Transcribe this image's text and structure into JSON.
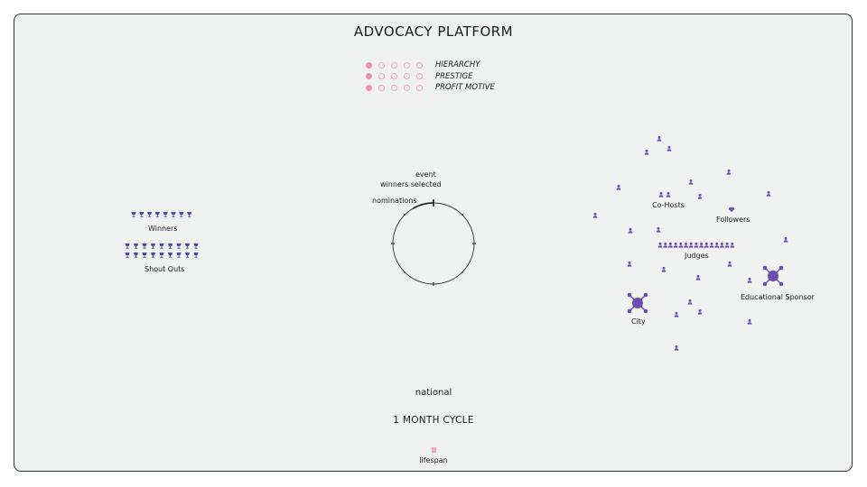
{
  "title": "ADVOCACY PLATFORM",
  "legend": [
    {
      "label": "HIERARCHY",
      "level": 1,
      "max": 5
    },
    {
      "label": "PRESTIGE",
      "level": 1,
      "max": 5
    },
    {
      "label": "PROFIT MOTIVE",
      "level": 1,
      "max": 5
    }
  ],
  "cycle": {
    "labels": {
      "event": "event",
      "winners": "winners selected",
      "nominations": "nominations"
    }
  },
  "left_groups": {
    "winners": {
      "label": "Winners",
      "count": 8
    },
    "shout_outs": {
      "label": "Shout Outs",
      "count": 18
    }
  },
  "network": {
    "cohosts": "Co-Hosts",
    "followers": "Followers",
    "judges": "Judges",
    "judges_count": 15,
    "educational_sponsor": "Educational Sponsor",
    "city": "City"
  },
  "scope": "national",
  "cycle_length": "1 MONTH CYCLE",
  "lifespan": "lifespan",
  "colors": {
    "accent_pink": "#ee91b1",
    "accent_purple": "#6a4fb0",
    "trophy_blue": "#4a49a8"
  }
}
